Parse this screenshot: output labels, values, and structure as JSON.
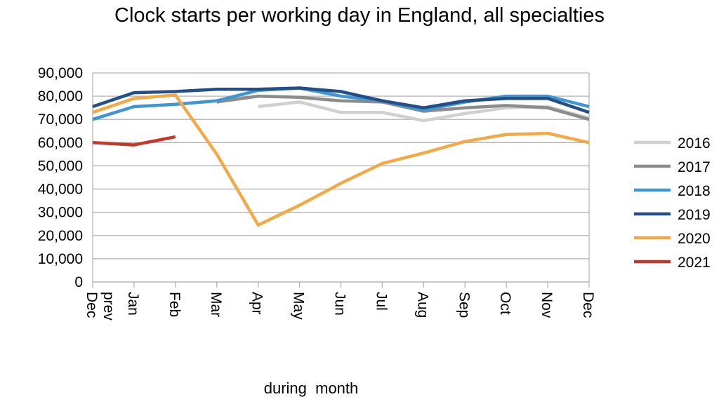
{
  "chart_data": {
    "type": "line",
    "title": "Clock starts per working day in England, all specialties",
    "xlabel": "during  month",
    "ylabel": "",
    "categories": [
      "Dec prev",
      "Jan",
      "Feb",
      "Mar",
      "Apr",
      "May",
      "Jun",
      "Jul",
      "Aug",
      "Sep",
      "Oct",
      "Nov",
      "Dec"
    ],
    "ylim": [
      0,
      90000
    ],
    "yticks": [
      "0",
      "10,000",
      "20,000",
      "30,000",
      "40,000",
      "50,000",
      "60,000",
      "70,000",
      "80,000",
      "90,000"
    ],
    "grid": true,
    "legend_position": "right",
    "series": [
      {
        "name": "2016",
        "color": "#d0d0d0",
        "values": [
          null,
          null,
          null,
          null,
          75500,
          77500,
          73000,
          73000,
          69500,
          72500,
          75000,
          75500,
          70500
        ]
      },
      {
        "name": "2017",
        "color": "#8c8c8c",
        "values": [
          null,
          null,
          null,
          77500,
          80000,
          79500,
          78000,
          77500,
          73500,
          75000,
          76000,
          75000,
          70000
        ]
      },
      {
        "name": "2018",
        "color": "#3f96d0",
        "values": [
          70000,
          75500,
          76500,
          78000,
          82500,
          83500,
          80000,
          78000,
          74000,
          77500,
          80000,
          80000,
          75500
        ]
      },
      {
        "name": "2019",
        "color": "#234f86",
        "values": [
          75500,
          81500,
          82000,
          83000,
          83000,
          83500,
          82000,
          78000,
          75000,
          78000,
          79000,
          79000,
          73000
        ]
      },
      {
        "name": "2020",
        "color": "#f2aa48",
        "values": [
          73000,
          79000,
          80500,
          55000,
          24500,
          33000,
          42500,
          51000,
          55500,
          60500,
          63500,
          64000,
          60000
        ]
      },
      {
        "name": "2021",
        "color": "#c0392b",
        "values": [
          60000,
          59000,
          62500,
          null,
          null,
          null,
          null,
          null,
          null,
          null,
          null,
          null,
          null
        ]
      }
    ]
  }
}
